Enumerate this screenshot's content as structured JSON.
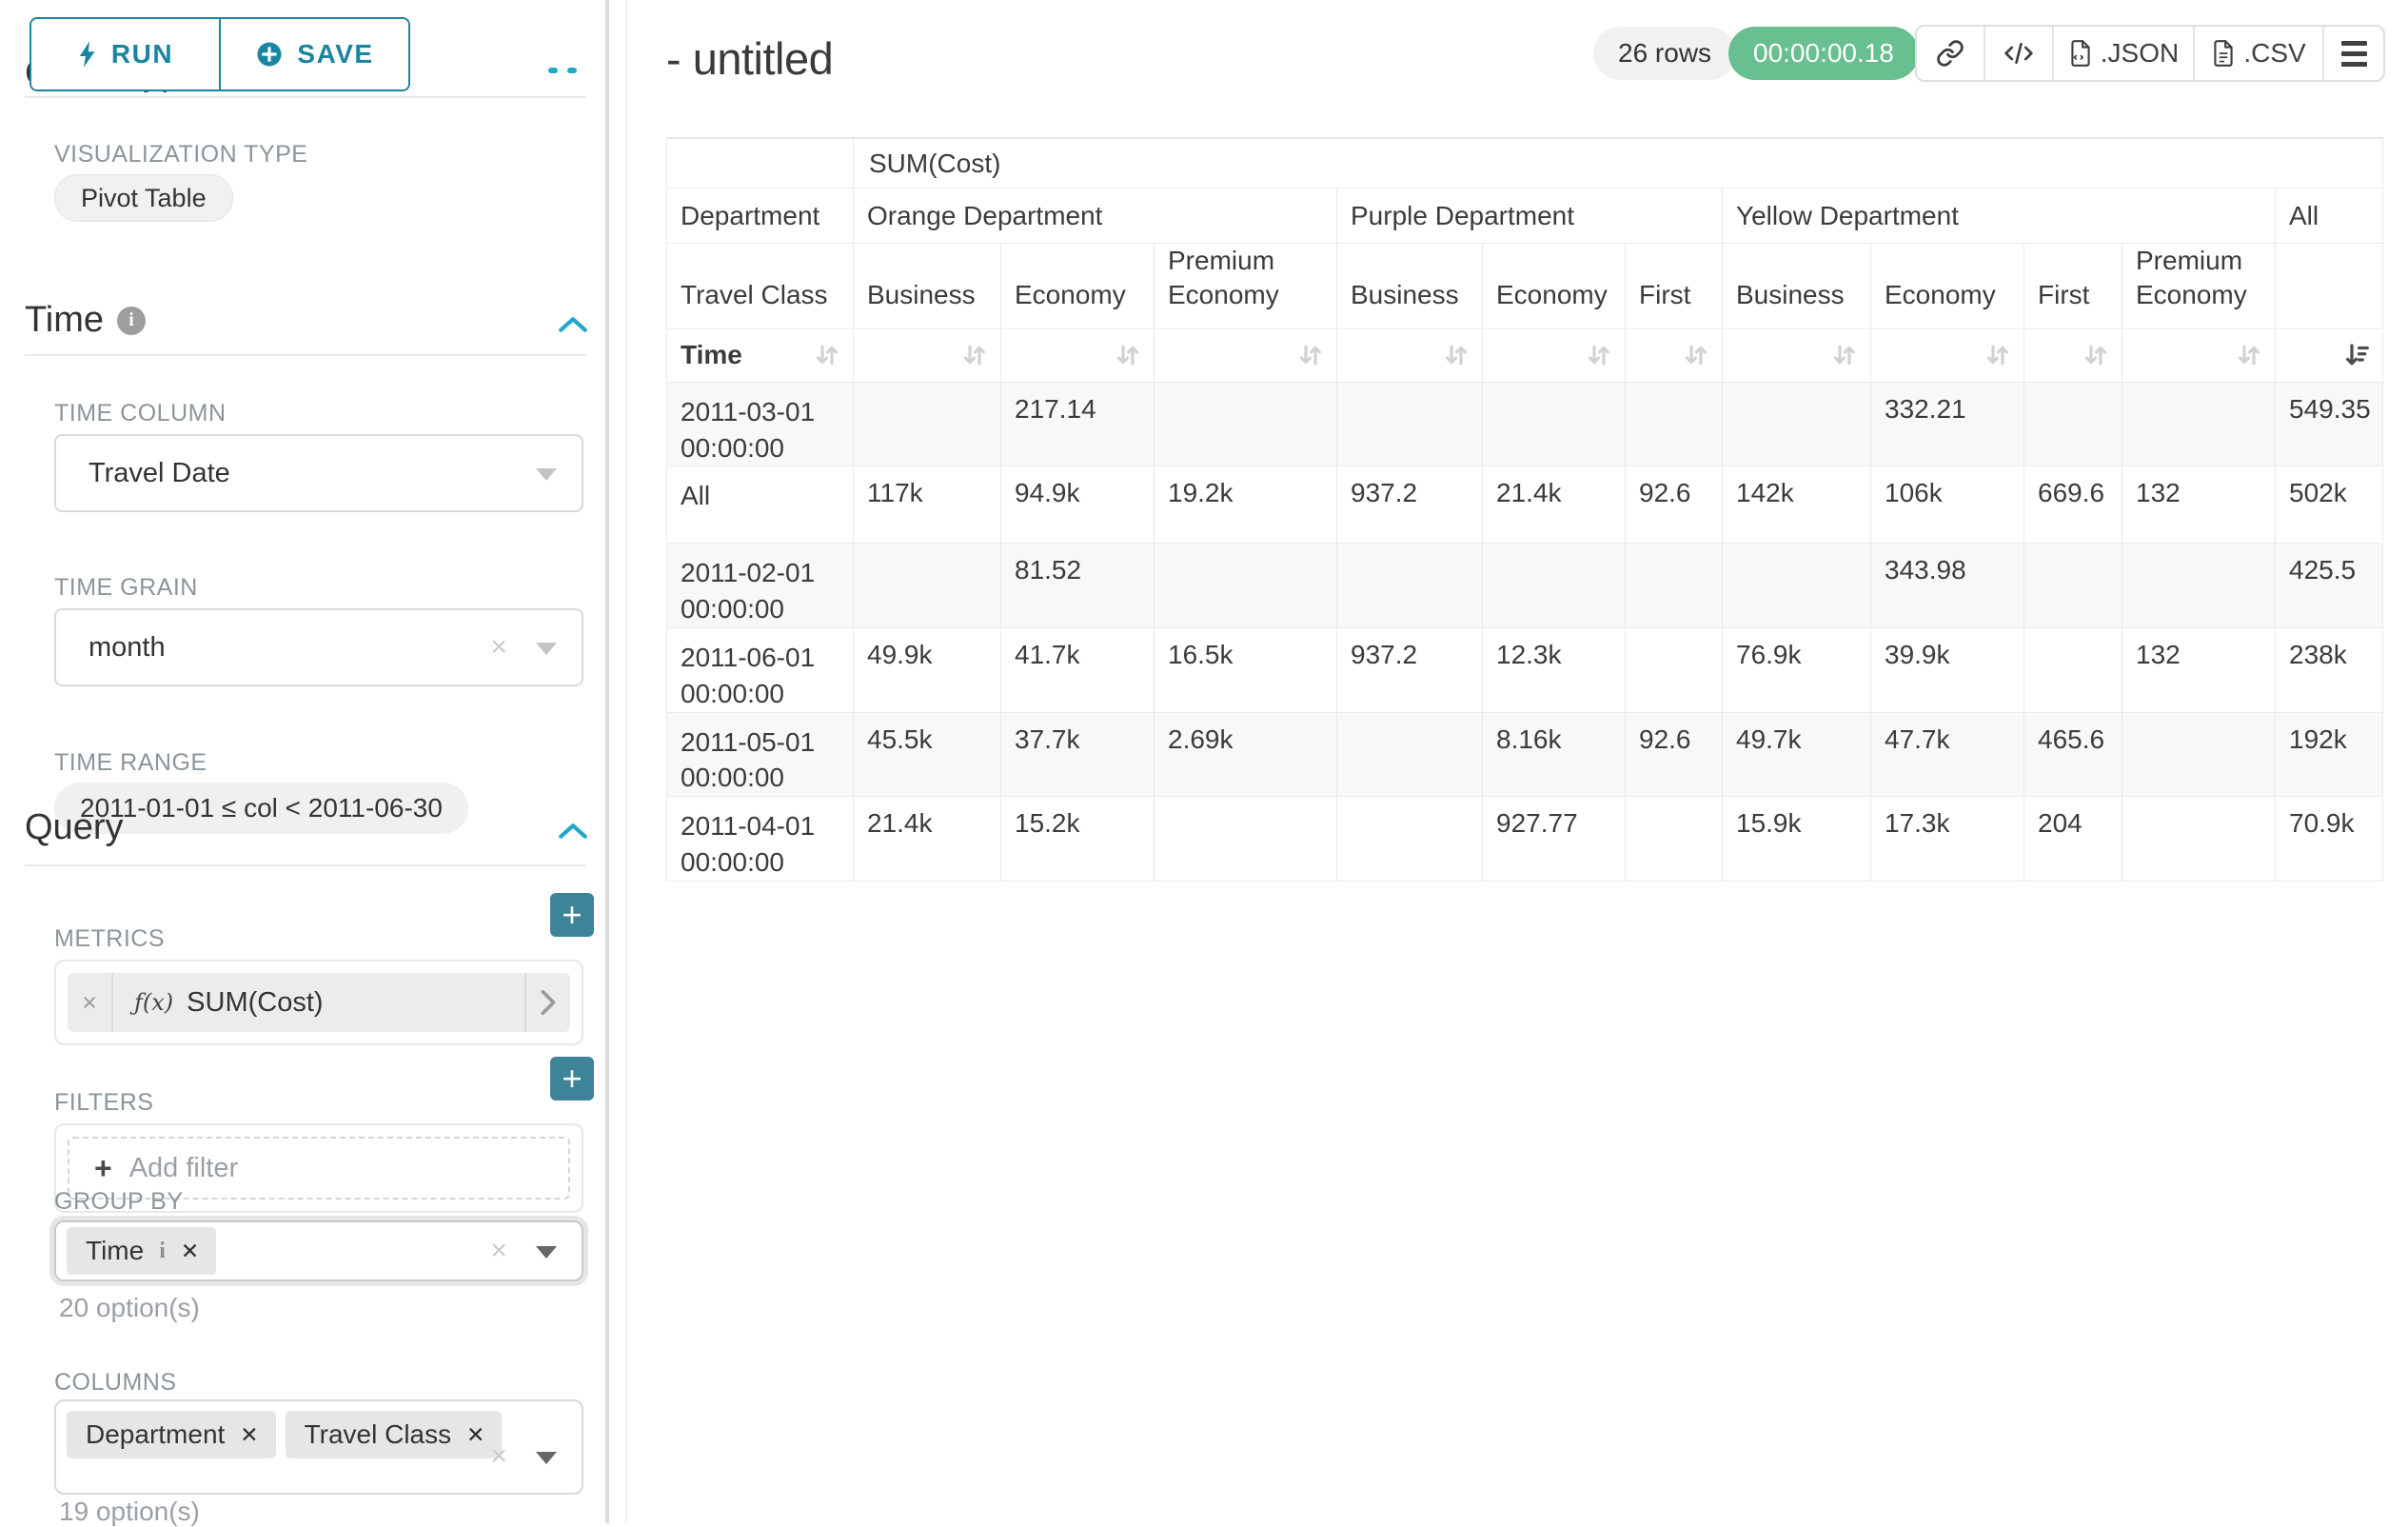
{
  "sidebar": {
    "run_button": "RUN",
    "save_button": "SAVE",
    "chart_type_heading": "Chart Type",
    "visualization": {
      "label": "VISUALIZATION TYPE",
      "value": "Pivot Table"
    },
    "time": {
      "title": "Time",
      "column_label": "TIME COLUMN",
      "column_value": "Travel Date",
      "grain_label": "TIME GRAIN",
      "grain_value": "month",
      "range_label": "TIME RANGE",
      "range_value": "2011-01-01 ≤ col < 2011-06-30"
    },
    "query": {
      "title": "Query",
      "metrics_label": "METRICS",
      "metric": {
        "fx": "ƒ(x)",
        "name": "SUM(Cost)"
      },
      "filters_label": "FILTERS",
      "add_filter": "Add filter",
      "group_by": {
        "label": "GROUP BY",
        "chips": [
          "Time"
        ],
        "hint": "20 option(s)"
      },
      "columns": {
        "label": "COLUMNS",
        "chips": [
          "Department",
          "Travel Class"
        ],
        "hint": "19 option(s)"
      }
    }
  },
  "header": {
    "title": "- untitled",
    "rows_badge": "26 rows",
    "timer_badge": "00:00:00.18",
    "json_button": ".JSON",
    "csv_button": ".CSV"
  },
  "colors": {
    "primary_teal": "#20a7c9",
    "button_teal": "#1a85a0",
    "plus_button_teal": "#3d8499",
    "timer_green": "#68bf8f"
  },
  "pivot": {
    "metric_header": "SUM(Cost)",
    "row_dim_label": "Department",
    "row_subdim_label": "Travel Class",
    "time_label": "Time",
    "col_groups": [
      {
        "label": "Orange Department",
        "children": [
          "Business",
          "Economy",
          "Premium Economy"
        ]
      },
      {
        "label": "Purple Department",
        "children": [
          "Business",
          "Economy",
          "First"
        ]
      },
      {
        "label": "Yellow Department",
        "children": [
          "Business",
          "Economy",
          "First",
          "Premium Economy"
        ]
      },
      {
        "label": "All",
        "children": [
          ""
        ]
      }
    ],
    "sort_active_index": 10,
    "rows": [
      {
        "label": "2011-03-01 00:00:00",
        "values": [
          "",
          "217.14",
          "",
          "",
          "",
          "",
          "",
          "332.21",
          "",
          "",
          "549.35"
        ]
      },
      {
        "label": "All",
        "values": [
          "117k",
          "94.9k",
          "19.2k",
          "937.2",
          "21.4k",
          "92.6",
          "142k",
          "106k",
          "669.6",
          "132",
          "502k"
        ]
      },
      {
        "label": "2011-02-01 00:00:00",
        "values": [
          "",
          "81.52",
          "",
          "",
          "",
          "",
          "",
          "343.98",
          "",
          "",
          "425.5"
        ]
      },
      {
        "label": "2011-06-01 00:00:00",
        "values": [
          "49.9k",
          "41.7k",
          "16.5k",
          "937.2",
          "12.3k",
          "",
          "76.9k",
          "39.9k",
          "",
          "132",
          "238k"
        ]
      },
      {
        "label": "2011-05-01 00:00:00",
        "values": [
          "45.5k",
          "37.7k",
          "2.69k",
          "",
          "8.16k",
          "92.6",
          "49.7k",
          "47.7k",
          "465.6",
          "",
          "192k"
        ]
      },
      {
        "label": "2011-04-01 00:00:00",
        "values": [
          "21.4k",
          "15.2k",
          "",
          "",
          "927.77",
          "",
          "15.9k",
          "17.3k",
          "204",
          "",
          "70.9k"
        ]
      }
    ]
  }
}
